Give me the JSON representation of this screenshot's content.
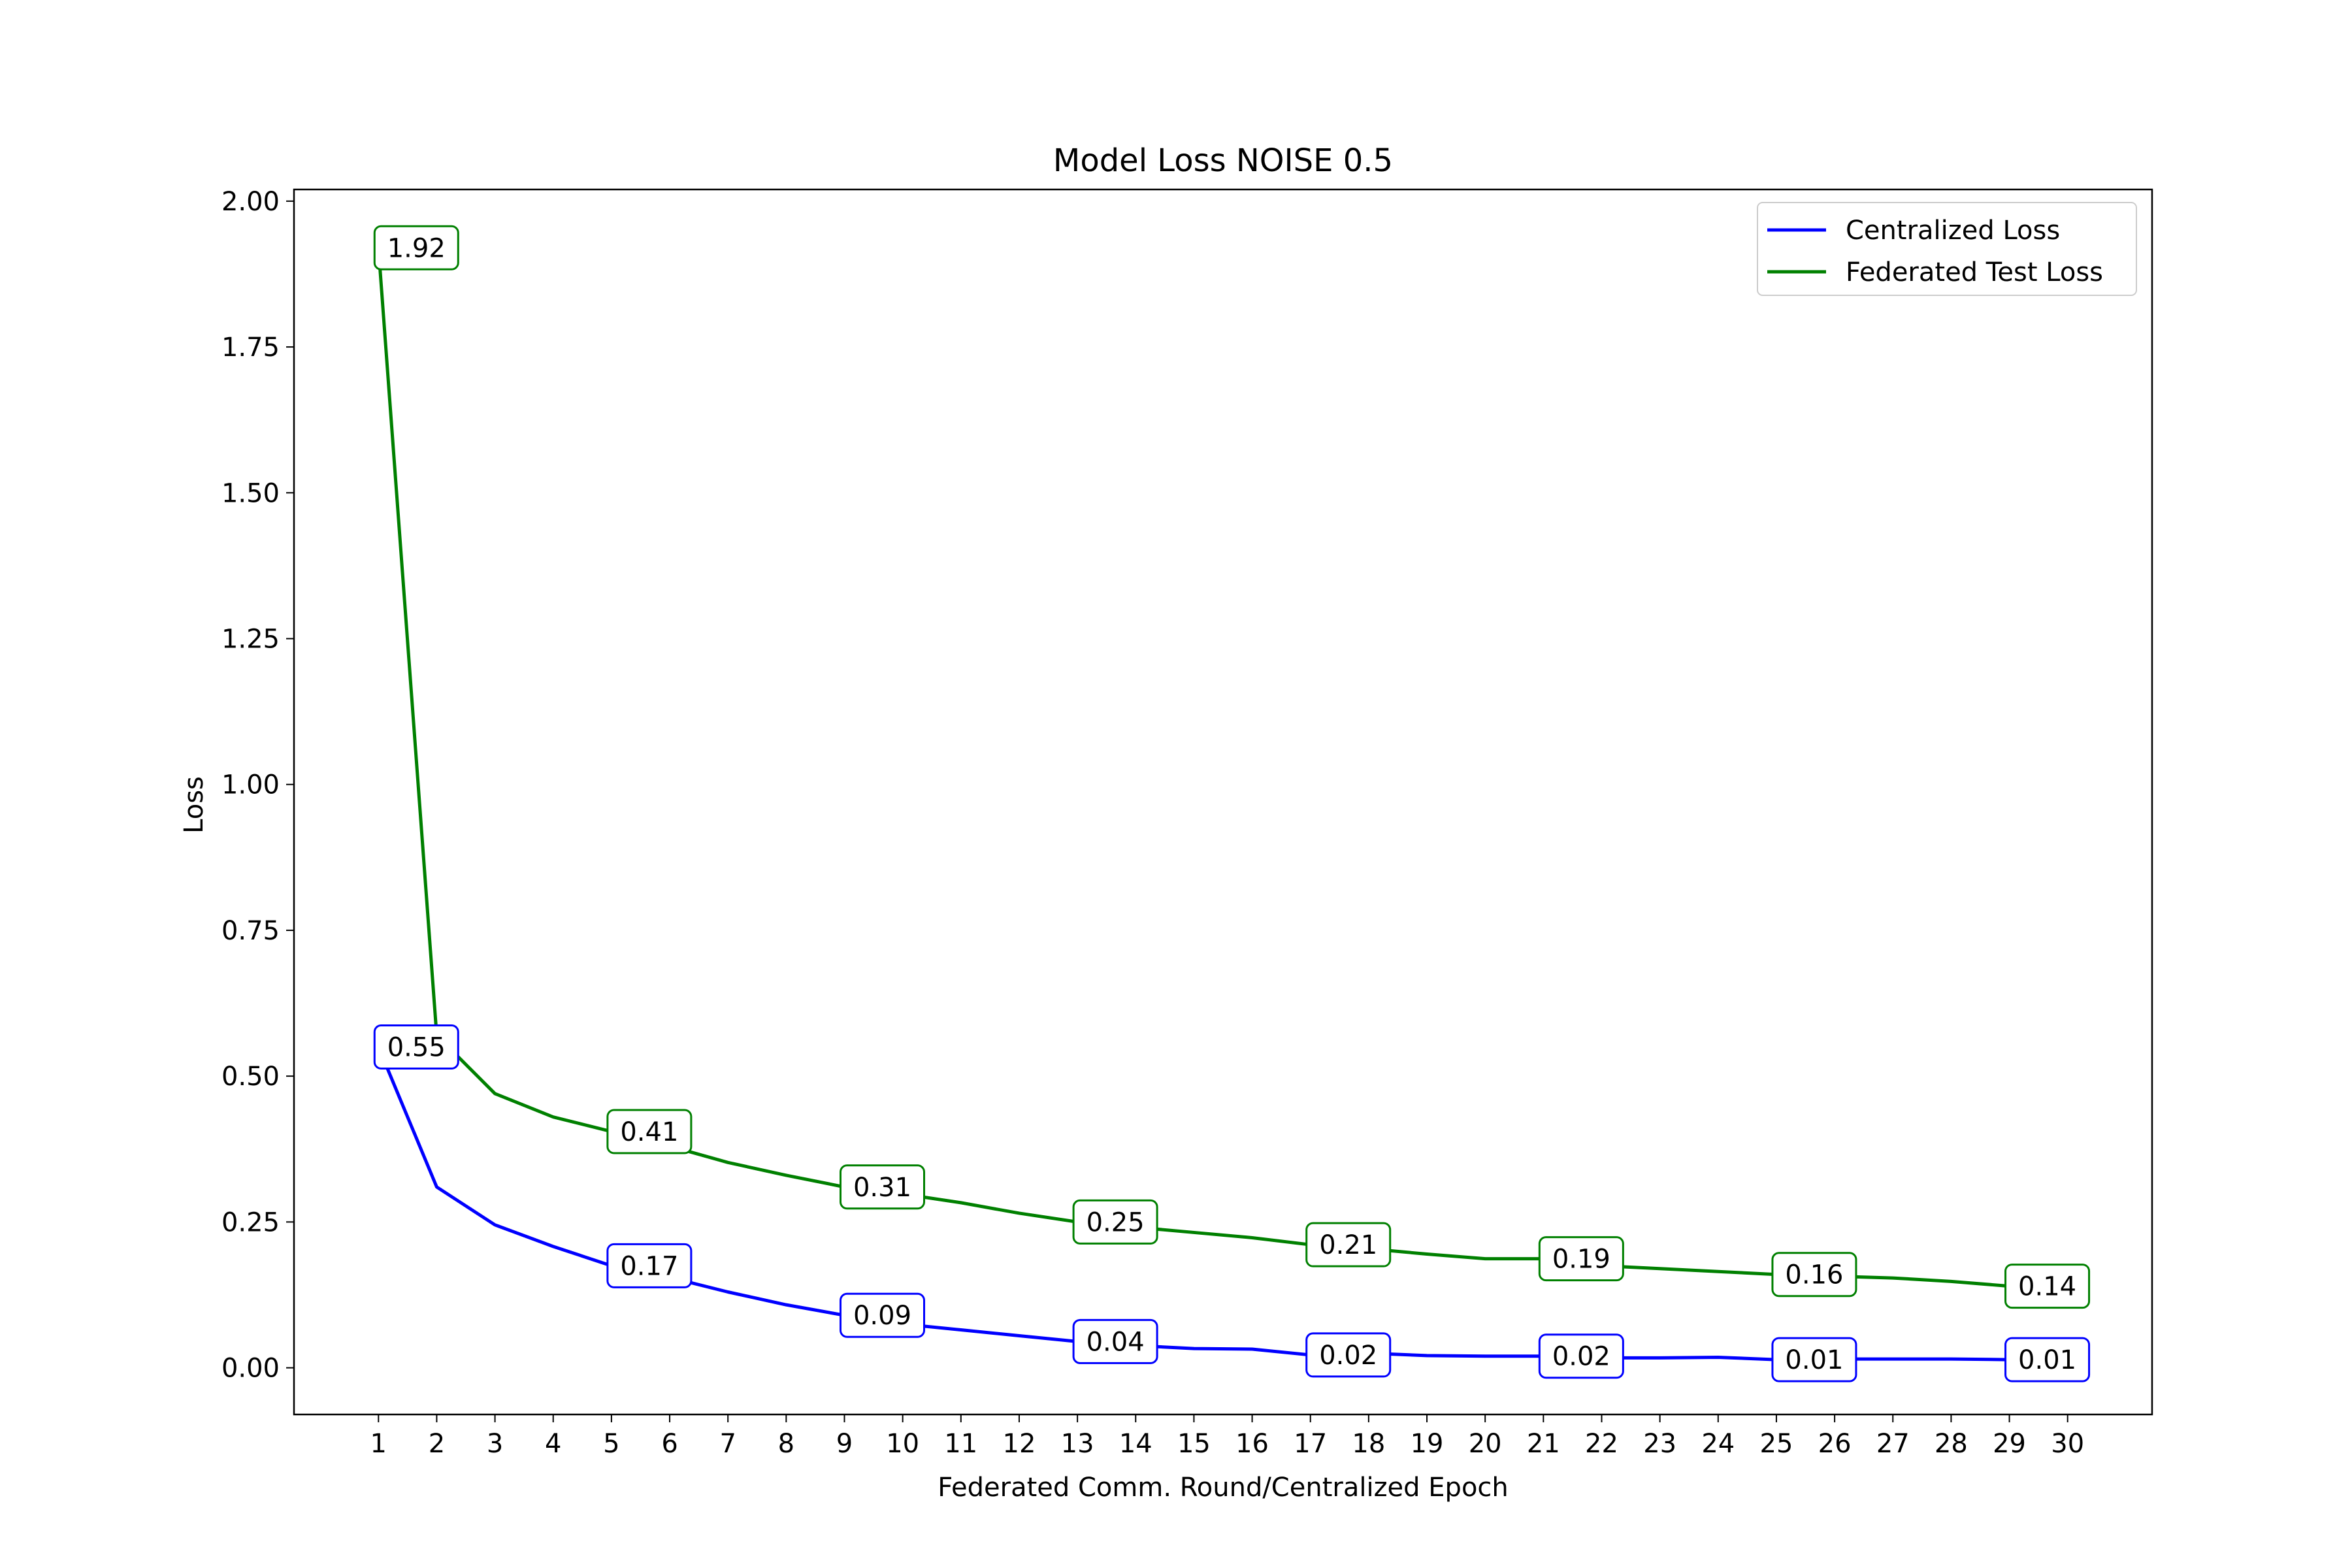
{
  "chart_data": {
    "type": "line",
    "title": "Model Loss NOISE 0.5",
    "xlabel": "Federated Comm. Round/Centralized Epoch",
    "ylabel": "Loss",
    "x": [
      1,
      2,
      3,
      4,
      5,
      6,
      7,
      8,
      9,
      10,
      11,
      12,
      13,
      14,
      15,
      16,
      17,
      18,
      19,
      20,
      21,
      22,
      23,
      24,
      25,
      26,
      27,
      28,
      29,
      30
    ],
    "xlim": [
      -0.45,
      31.45
    ],
    "ylim": [
      -0.08,
      2.02
    ],
    "yticks": [
      0.0,
      0.25,
      0.5,
      0.75,
      1.0,
      1.25,
      1.5,
      1.75,
      2.0
    ],
    "ytick_labels": [
      "0.00",
      "0.25",
      "0.50",
      "0.75",
      "1.00",
      "1.25",
      "1.50",
      "1.75",
      "2.00"
    ],
    "grid": false,
    "legend_position": "top-right",
    "series": [
      {
        "name": "Centralized Loss",
        "color": "#0000ff",
        "values": [
          0.55,
          0.31,
          0.245,
          0.208,
          0.175,
          0.155,
          0.13,
          0.108,
          0.09,
          0.075,
          0.065,
          0.055,
          0.045,
          0.038,
          0.033,
          0.032,
          0.022,
          0.025,
          0.021,
          0.02,
          0.02,
          0.017,
          0.017,
          0.018,
          0.014,
          0.015,
          0.015,
          0.015,
          0.014,
          0.013
        ],
        "label_indices": [
          0,
          4,
          8,
          12,
          16,
          20,
          24,
          28
        ],
        "labels": [
          "0.55",
          "0.17",
          "0.09",
          "0.04",
          "0.02",
          "0.02",
          "0.01",
          "0.01"
        ]
      },
      {
        "name": "Federated Test Loss",
        "color": "#008000",
        "values": [
          1.92,
          0.57,
          0.47,
          0.43,
          0.405,
          0.38,
          0.352,
          0.33,
          0.31,
          0.298,
          0.283,
          0.265,
          0.25,
          0.241,
          0.232,
          0.223,
          0.211,
          0.204,
          0.195,
          0.187,
          0.187,
          0.175,
          0.17,
          0.165,
          0.16,
          0.157,
          0.154,
          0.148,
          0.14,
          0.137
        ],
        "label_indices": [
          0,
          4,
          8,
          12,
          16,
          20,
          24,
          28
        ],
        "labels": [
          "1.92",
          "0.41",
          "0.31",
          "0.25",
          "0.21",
          "0.19",
          "0.16",
          "0.14"
        ]
      }
    ]
  }
}
